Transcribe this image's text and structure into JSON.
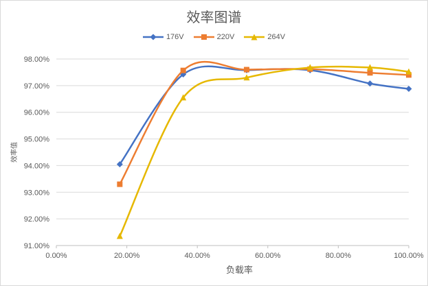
{
  "chart_data": {
    "type": "line",
    "title": "效率图谱",
    "xlabel": "负载率",
    "ylabel": "效率值",
    "xlim": [
      0,
      100
    ],
    "ylim": [
      91,
      98
    ],
    "x_ticks": [
      0,
      20,
      40,
      60,
      80,
      100
    ],
    "x_tick_labels": [
      "0.00%",
      "20.00%",
      "40.00%",
      "60.00%",
      "80.00%",
      "100.00%"
    ],
    "y_ticks": [
      91,
      92,
      93,
      94,
      95,
      96,
      97,
      98
    ],
    "y_tick_labels": [
      "91.00%",
      "92.00%",
      "93.00%",
      "94.00%",
      "95.00%",
      "96.00%",
      "97.00%",
      "98.00%"
    ],
    "grid": "horizontal",
    "legend_position": "top",
    "series": [
      {
        "name": "176V",
        "color": "#4472c4",
        "marker": "diamond",
        "x": [
          18,
          36,
          54,
          72,
          89,
          100
        ],
        "y": [
          94.05,
          97.42,
          97.58,
          97.58,
          97.08,
          96.88
        ]
      },
      {
        "name": "220V",
        "color": "#ed7d31",
        "marker": "square",
        "x": [
          18,
          36,
          54,
          72,
          89,
          100
        ],
        "y": [
          93.3,
          97.57,
          97.6,
          97.62,
          97.48,
          97.4
        ]
      },
      {
        "name": "264V",
        "color": "#e6b800",
        "marker": "triangle",
        "x": [
          18,
          36,
          54,
          72,
          89,
          100
        ],
        "y": [
          91.35,
          96.55,
          97.3,
          97.68,
          97.68,
          97.52
        ]
      }
    ]
  }
}
